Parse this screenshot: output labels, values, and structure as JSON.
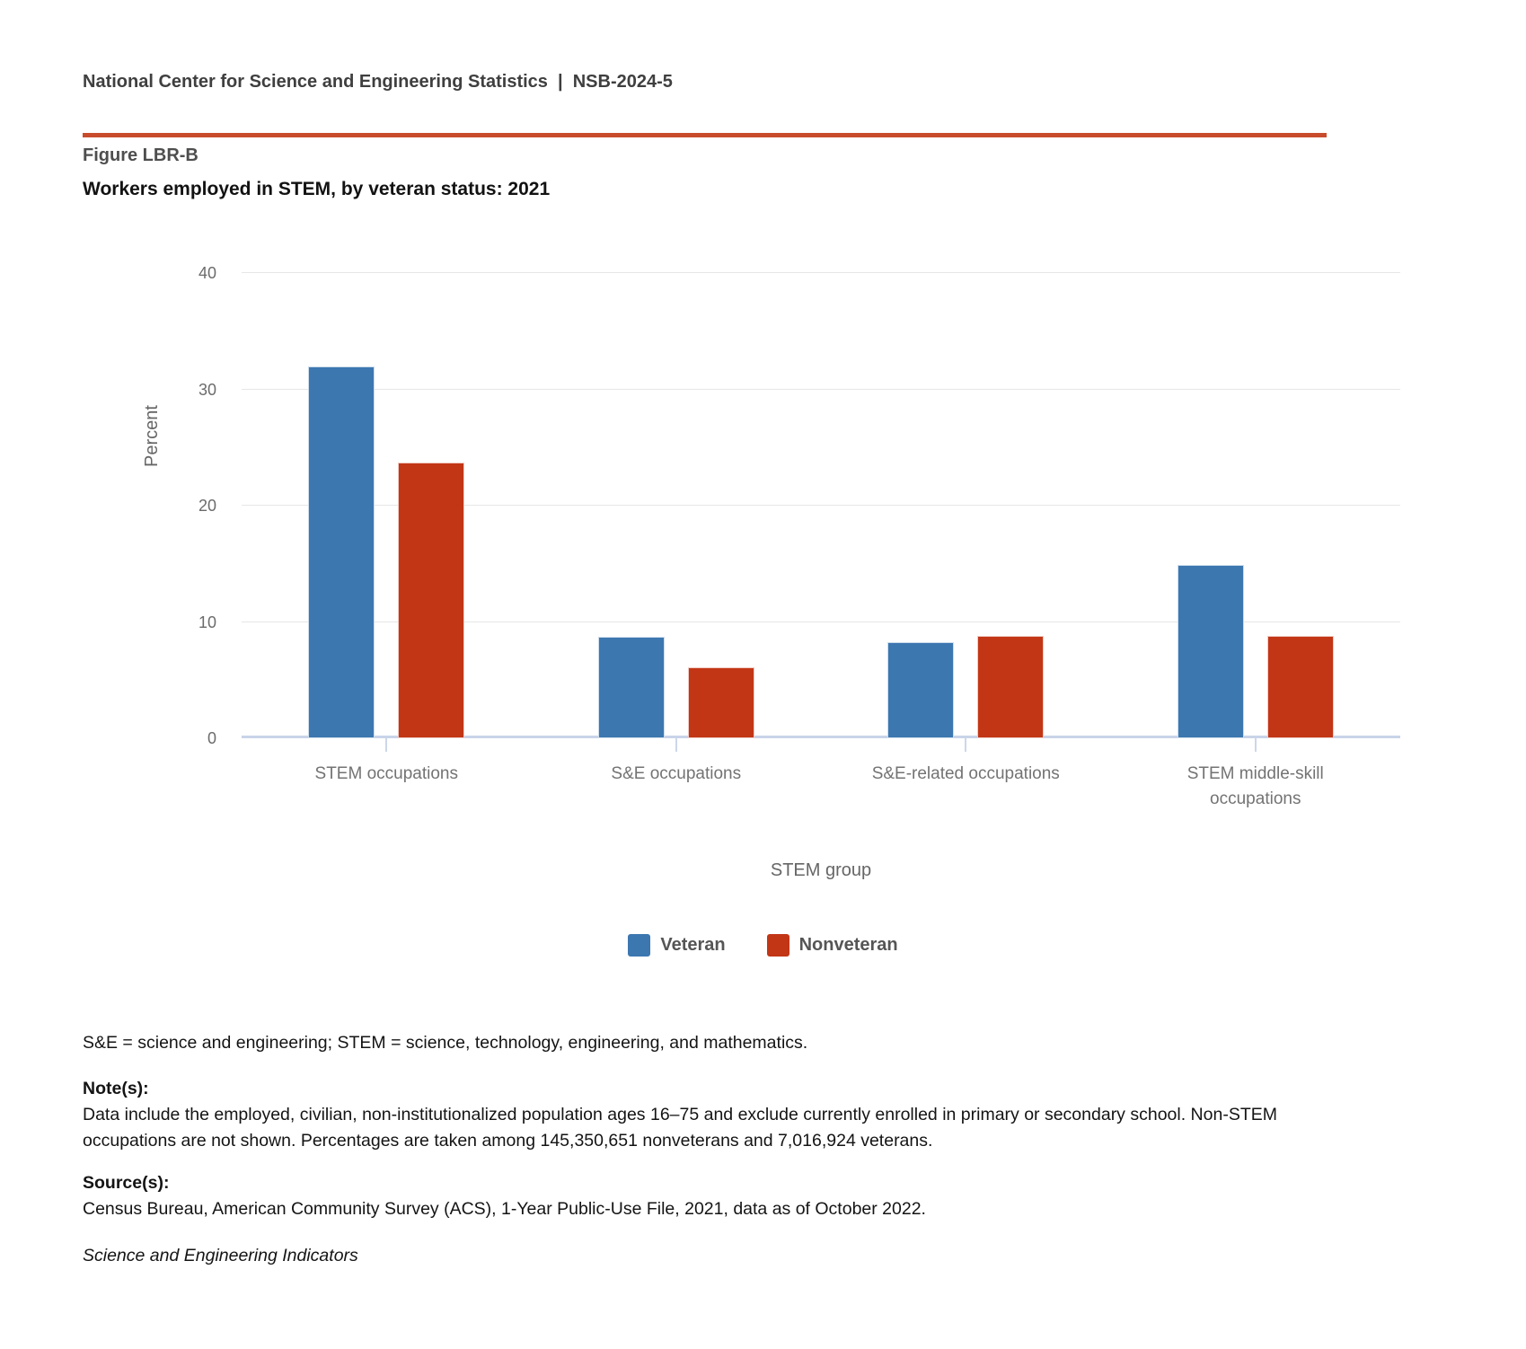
{
  "header": {
    "text": "National Center for Science and Engineering Statistics  |  NSB-2024-5"
  },
  "figure": {
    "label": "Figure LBR-B",
    "title": "Workers employed in STEM, by veteran status: 2021"
  },
  "chart_data": {
    "type": "bar",
    "title": "Workers employed in STEM, by veteran status: 2021",
    "categories": [
      "STEM occupations",
      "S&E occupations",
      "S&E-related occupations",
      "STEM middle-skill occupations"
    ],
    "series": [
      {
        "name": "Veteran",
        "color": "#3c77b0",
        "values": [
          32.0,
          8.7,
          8.3,
          14.9
        ]
      },
      {
        "name": "Nonveteran",
        "color": "#c23616",
        "values": [
          23.7,
          6.1,
          8.8,
          8.8
        ]
      }
    ],
    "xlabel": "STEM group",
    "ylabel": "Percent",
    "ylim": [
      0,
      40
    ],
    "yticks": [
      0,
      10,
      20,
      30,
      40
    ],
    "grid": "horizontal",
    "legend_position": "bottom"
  },
  "colors": {
    "rule": "#c84c2c",
    "gridline": "#e6e6e6",
    "axis_line": "#c9d4e8",
    "veteran": "#3c77b0",
    "nonveteran": "#c23616"
  },
  "footnotes": {
    "abbreviations": "S&E = science and engineering; STEM = science, technology, engineering, and mathematics.",
    "notes_label": "Note(s):",
    "notes_body": "Data include the employed, civilian, non-institutionalized population ages 16–75 and exclude currently enrolled in primary or secondary school. Non-STEM occupations are not shown. Percentages are taken among 145,350,651 nonveterans and 7,016,924 veterans.",
    "sources_label": "Source(s):",
    "sources_body": "Census Bureau, American Community Survey (ACS), 1-Year Public-Use File, 2021, data as of October 2022.",
    "attribution": "Science and Engineering Indicators"
  }
}
